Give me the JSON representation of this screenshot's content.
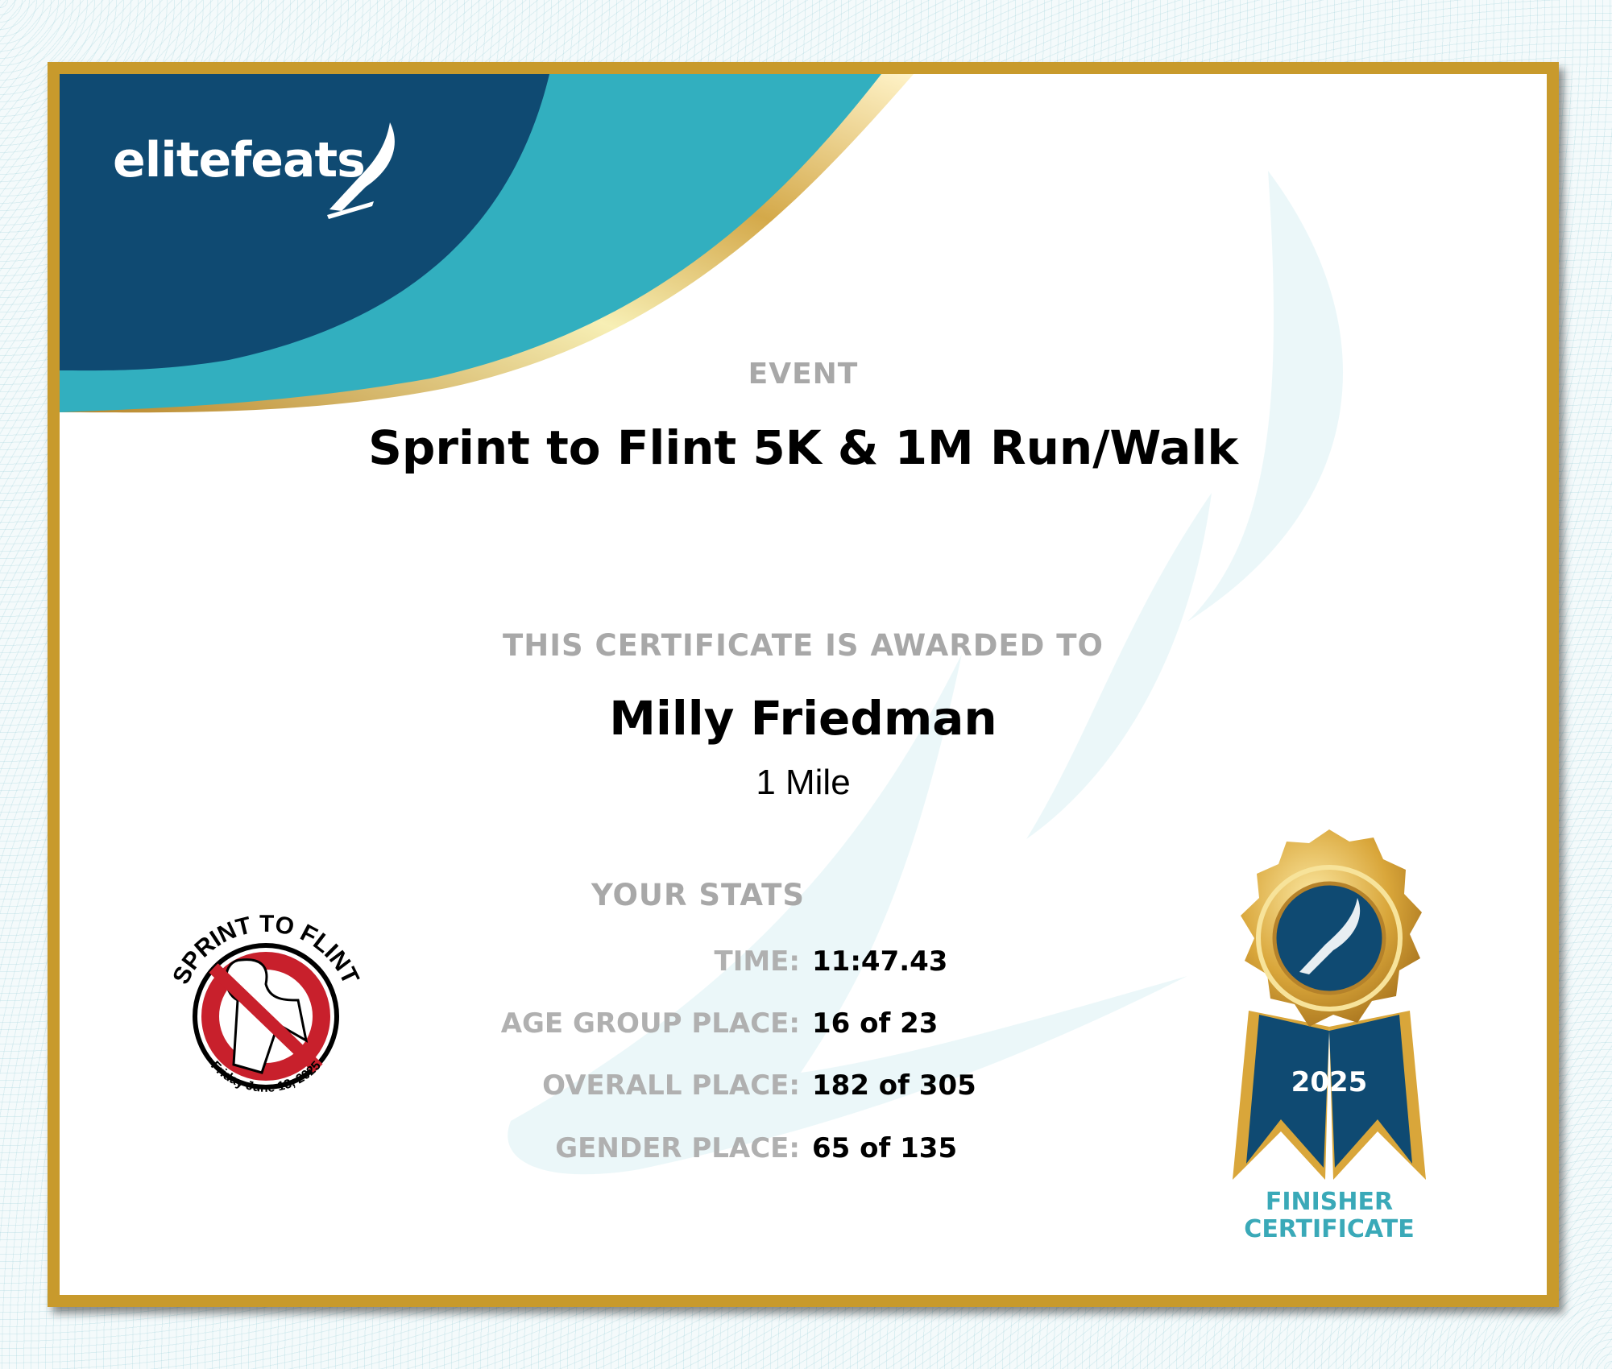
{
  "brand": {
    "logo_text": "elitefeats"
  },
  "event": {
    "label": "EVENT",
    "title": "Sprint to Flint 5K & 1M Run/Walk"
  },
  "award": {
    "label": "THIS CERTIFICATE IS AWARDED TO",
    "name": "Milly Friedman",
    "distance": "1 Mile"
  },
  "stats": {
    "heading": "YOUR STATS",
    "rows": [
      {
        "label": "TIME:",
        "value": "11:47.43"
      },
      {
        "label": "AGE GROUP PLACE:",
        "value": "16 of 23"
      },
      {
        "label": "OVERALL PLACE:",
        "value": "182 of 305"
      },
      {
        "label": "GENDER PLACE:",
        "value": "65 of 135"
      }
    ]
  },
  "event_logo": {
    "text_top": "SPRINT TO FLINT",
    "text_bottom": "Friday June 13, 2025"
  },
  "medal": {
    "year": "2025",
    "caption_line1": "FINISHER",
    "caption_line2": "CERTIFICATE"
  },
  "colors": {
    "navy": "#0f4a72",
    "teal": "#32afbf",
    "gold": "#c89a2c",
    "label_gray": "#a8a8a8",
    "caption_teal": "#3aa9b8"
  }
}
